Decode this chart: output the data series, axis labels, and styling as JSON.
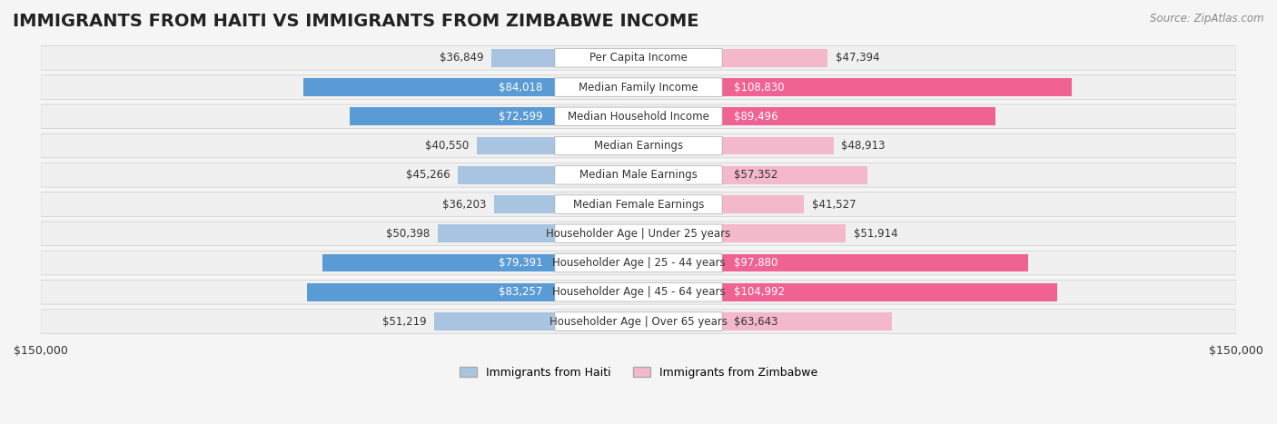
{
  "title": "IMMIGRANTS FROM HAITI VS IMMIGRANTS FROM ZIMBABWE INCOME",
  "source": "Source: ZipAtlas.com",
  "categories": [
    "Per Capita Income",
    "Median Family Income",
    "Median Household Income",
    "Median Earnings",
    "Median Male Earnings",
    "Median Female Earnings",
    "Householder Age | Under 25 years",
    "Householder Age | 25 - 44 years",
    "Householder Age | 45 - 64 years",
    "Householder Age | Over 65 years"
  ],
  "haiti_values": [
    36849,
    84018,
    72599,
    40550,
    45266,
    36203,
    50398,
    79391,
    83257,
    51219
  ],
  "zimbabwe_values": [
    47394,
    108830,
    89496,
    48913,
    57352,
    41527,
    51914,
    97880,
    104992,
    63643
  ],
  "haiti_color_light": "#a8c4e0",
  "haiti_color_dark": "#5b9bd5",
  "zimbabwe_color_light": "#f4b8cb",
  "zimbabwe_color_dark": "#f06292",
  "max_value": 150000,
  "legend_haiti": "Immigrants from Haiti",
  "legend_zimbabwe": "Immigrants from Zimbabwe",
  "bg_color": "#f5f5f5",
  "bar_bg_color": "#ffffff",
  "row_bg_color": "#efefef",
  "label_fontsize": 9,
  "title_fontsize": 14
}
